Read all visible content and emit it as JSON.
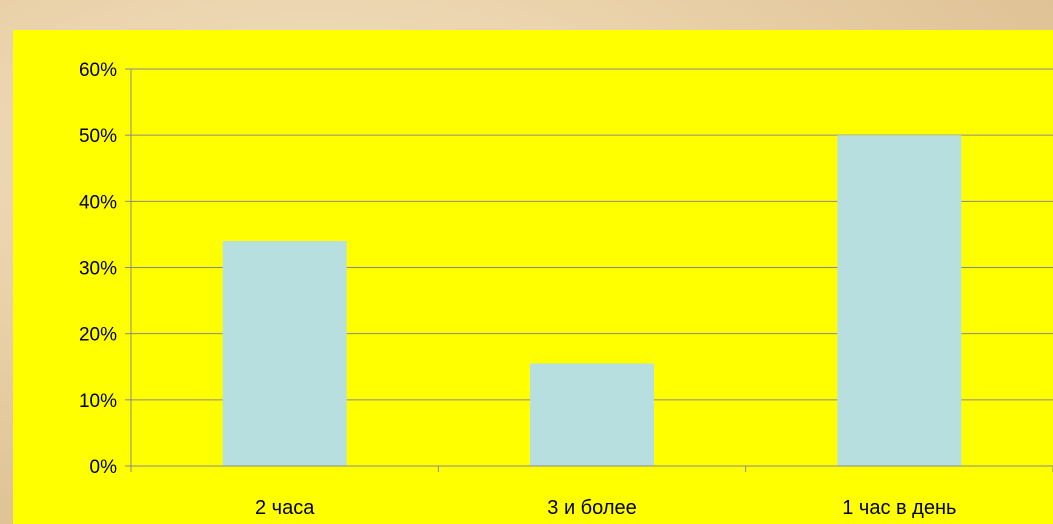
{
  "colors": {
    "plot_background": "#ffff00",
    "bar_fill": "#b8dfe0",
    "gridline": "#8a8a8a",
    "axis": "#8a8a8a"
  },
  "chart_data": {
    "type": "bar",
    "categories": [
      "2 часа",
      "3 и более",
      "1 час в день"
    ],
    "values": [
      34,
      15.5,
      50
    ],
    "value_format": "percent",
    "title": "",
    "xlabel": "",
    "ylabel": "",
    "ylim": [
      0,
      60
    ],
    "yticks": [
      0,
      10,
      20,
      30,
      40,
      50,
      60
    ],
    "ytick_labels": [
      "0%",
      "10%",
      "20%",
      "30%",
      "40%",
      "50%",
      "60%"
    ],
    "grid": true,
    "legend": "none"
  }
}
